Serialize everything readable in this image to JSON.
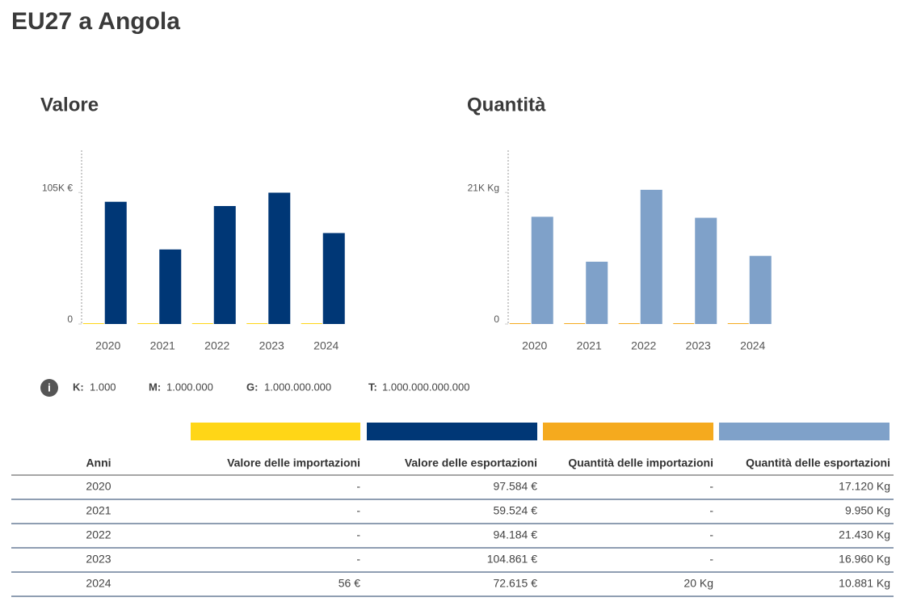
{
  "title": "EU27 a Angola",
  "chart_data": [
    {
      "type": "bar",
      "title": "Valore",
      "categories": [
        "2020",
        "2021",
        "2022",
        "2023",
        "2024"
      ],
      "series": [
        {
          "name": "Valore delle importazioni",
          "color": "#ffd617",
          "values": [
            0,
            0,
            0,
            0,
            56
          ]
        },
        {
          "name": "Valore delle esportazioni",
          "color": "#003776",
          "values": [
            97584,
            59524,
            94184,
            104861,
            72615
          ]
        }
      ],
      "ylim": [
        0,
        138700
      ],
      "yticks": [
        0,
        {
          "value": 105000,
          "label": "105K €"
        }
      ]
    },
    {
      "type": "bar",
      "title": "Quantità",
      "categories": [
        "2020",
        "2021",
        "2022",
        "2023",
        "2024"
      ],
      "series": [
        {
          "name": "Quantità delle importazioni",
          "color": "#f5aa1e",
          "values": [
            0,
            0,
            0,
            0,
            20
          ]
        },
        {
          "name": "Quantità delle esportazioni",
          "color": "#7fa1c9",
          "values": [
            17120,
            9950,
            21430,
            16960,
            10881
          ]
        }
      ],
      "ylim": [
        0,
        27740
      ],
      "yticks": [
        0,
        {
          "value": 21000,
          "label": "21K Kg"
        }
      ]
    }
  ],
  "units": [
    {
      "key": "K:",
      "value": "1.000"
    },
    {
      "key": "M:",
      "value": "1.000.000"
    },
    {
      "key": "G:",
      "value": "1.000.000.000"
    },
    {
      "key": "T:",
      "value": "1.000.000.000.000"
    }
  ],
  "table": {
    "header": [
      "Anni",
      "Valore delle importazioni",
      "Valore delle esportazioni",
      "Quantità delle importazioni",
      "Quantità delle esportazioni"
    ],
    "rows": [
      [
        "2020",
        "-",
        "97.584 €",
        "-",
        "17.120 Kg"
      ],
      [
        "2021",
        "-",
        "59.524 €",
        "-",
        "9.950 Kg"
      ],
      [
        "2022",
        "-",
        "94.184 €",
        "-",
        "21.430 Kg"
      ],
      [
        "2023",
        "-",
        "104.861 €",
        "-",
        "16.960 Kg"
      ],
      [
        "2024",
        "56 €",
        "72.615 €",
        "20 Kg",
        "10.881 Kg"
      ]
    ]
  }
}
